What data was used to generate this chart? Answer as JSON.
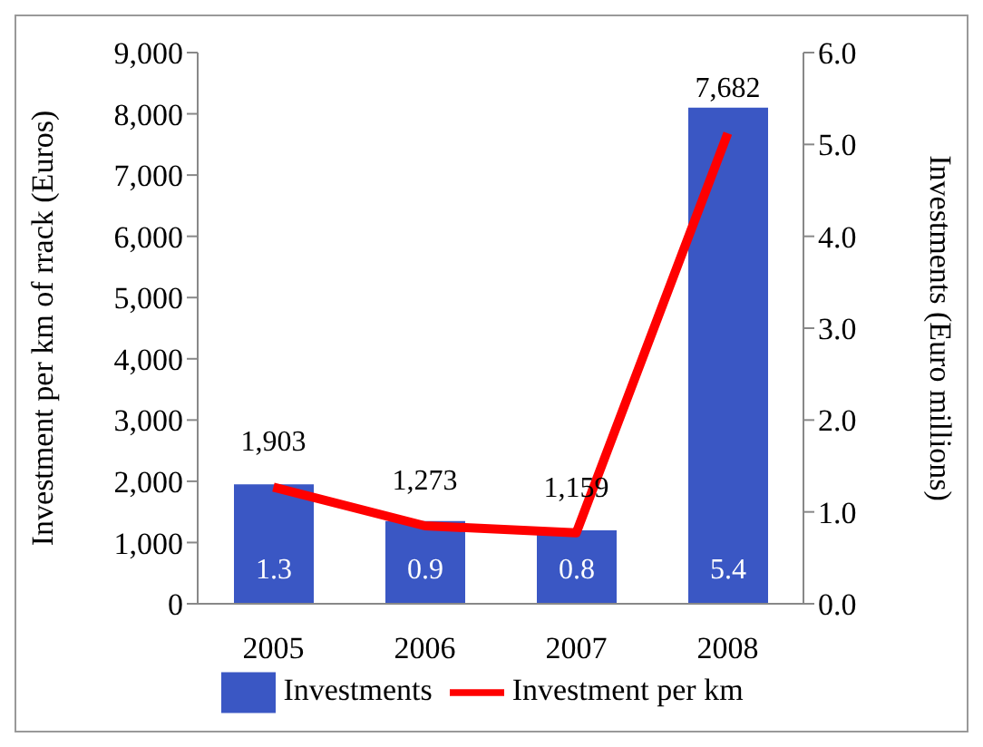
{
  "chart_data": {
    "type": "bar",
    "categories": [
      "2005",
      "2006",
      "2007",
      "2008"
    ],
    "ylabel": "Investment per km of rrack (Euros)",
    "y2label": "Investments (Euro millions)",
    "ylim": [
      0,
      9000
    ],
    "yticks": [
      0,
      {
        "value": 1000,
        "label": "1,000"
      },
      {
        "value": 2000,
        "label": "2,000"
      },
      {
        "value": 3000,
        "label": "3,000"
      },
      {
        "value": 4000,
        "label": "4,000"
      },
      {
        "value": 5000,
        "label": "5,000"
      },
      {
        "value": 6000,
        "label": "6,000"
      },
      {
        "value": 7000,
        "label": "7,000"
      },
      {
        "value": 8000,
        "label": "8,000"
      },
      {
        "value": 9000,
        "label": "9,000"
      }
    ],
    "y2lim": [
      0,
      6
    ],
    "y2ticks": [
      {
        "value": 0,
        "label": "0.0"
      },
      {
        "value": 1,
        "label": "1.0"
      },
      {
        "value": 2,
        "label": "2.0"
      },
      {
        "value": 3,
        "label": "3.0"
      },
      {
        "value": 4,
        "label": "4.0"
      },
      {
        "value": 5,
        "label": "5.0"
      },
      {
        "value": 6,
        "label": "6.0"
      }
    ],
    "series": [
      {
        "name": "Investments",
        "axis": "y2",
        "color": "#3a57c4",
        "values": [
          1.3,
          0.9,
          0.8,
          5.4
        ],
        "value_labels": [
          "1.3",
          "0.9",
          "0.8",
          "5.4"
        ]
      },
      {
        "name": "Investment per km",
        "type": "line",
        "color": "#ff0000",
        "values": [
          1903,
          1273,
          1159,
          7682
        ],
        "value_labels": [
          "1,903",
          "1,273",
          "1,159",
          "7,682"
        ]
      }
    ],
    "grid": false,
    "legend": "bottom",
    "marker": "none",
    "line_style": "solid"
  }
}
